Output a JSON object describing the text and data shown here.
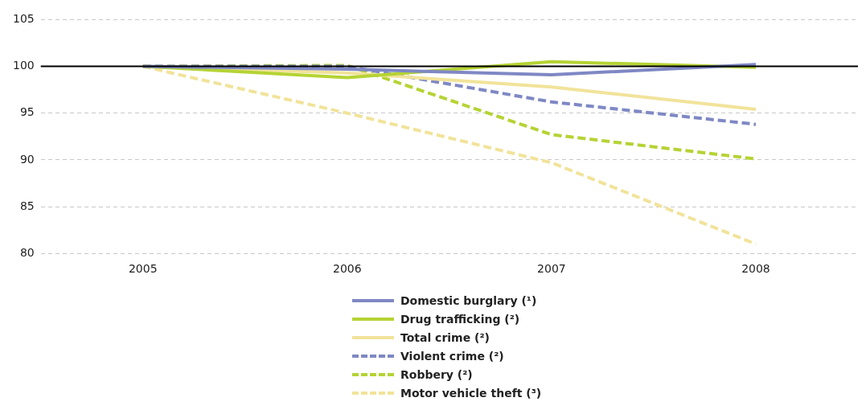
{
  "chart_data": {
    "type": "line",
    "categories": [
      "2005",
      "2006",
      "2007",
      "2008"
    ],
    "series": [
      {
        "name": "Domestic burglary (¹)",
        "color": "#7f88c4",
        "values": [
          100,
          99.7,
          99.1,
          100.2
        ],
        "line_style": "solid"
      },
      {
        "name": "Drug trafficking (²)",
        "color": "#b5d334",
        "values": [
          100,
          98.8,
          100.5,
          99.9
        ],
        "line_style": "solid"
      },
      {
        "name": "Total crime (²)",
        "color": "#f1e39a",
        "values": [
          100,
          99.3,
          97.8,
          95.4
        ],
        "line_style": "solid"
      },
      {
        "name": "Violent crime (²)",
        "color": "#7f88c4",
        "values": [
          100,
          100,
          96.2,
          93.8
        ],
        "line_style": "dashed"
      },
      {
        "name": "Robbery (²)",
        "color": "#b5d334",
        "values": [
          100,
          100.1,
          92.7,
          90.1
        ],
        "line_style": "dashed"
      },
      {
        "name": "Motor vehicle theft (³)",
        "color": "#f1e39a",
        "values": [
          100,
          95,
          89.7,
          81
        ],
        "line_style": "dashed"
      }
    ],
    "ylim": [
      80,
      105
    ],
    "yticks": [
      80,
      85,
      90,
      95,
      100,
      105
    ],
    "grid": "y",
    "legend": "bottom",
    "marker": "none",
    "ref_lines": [
      {
        "axis": "y",
        "value": 100,
        "color": "#000000"
      }
    ]
  }
}
